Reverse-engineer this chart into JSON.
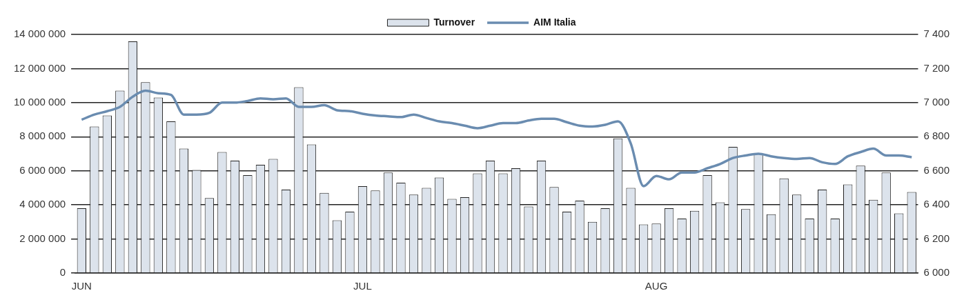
{
  "chart_data": {
    "type": "bar",
    "categories": [
      "JUN",
      null,
      null,
      null,
      null,
      null,
      null,
      null,
      null,
      null,
      null,
      null,
      null,
      null,
      null,
      null,
      null,
      null,
      null,
      null,
      null,
      null,
      "JUL",
      null,
      null,
      null,
      null,
      null,
      null,
      null,
      null,
      null,
      null,
      null,
      null,
      null,
      null,
      null,
      null,
      null,
      null,
      null,
      null,
      null,
      null,
      "AUG",
      null,
      null,
      null,
      null,
      null,
      null,
      null,
      null,
      null,
      null,
      null,
      null,
      null,
      null,
      null,
      null,
      null,
      null,
      null,
      null
    ],
    "series": [
      {
        "name": "Turnover",
        "color": "#dce3ec",
        "values": [
          3800000,
          8600000,
          9250000,
          10700000,
          13600000,
          11200000,
          10300000,
          8900000,
          7300000,
          6050000,
          4400000,
          7100000,
          6600000,
          5750000,
          6350000,
          6700000,
          4900000,
          10900000,
          7550000,
          4700000,
          3100000,
          3600000,
          5100000,
          4850000,
          5900000,
          5300000,
          4600000,
          5000000,
          5600000,
          4350000,
          4450000,
          5850000,
          6600000,
          5850000,
          6150000,
          3900000,
          6600000,
          5050000,
          3600000,
          4250000,
          3000000,
          3800000,
          7900000,
          5000000,
          2850000,
          2900000,
          3800000,
          3200000,
          3650000,
          5750000,
          4150000,
          7400000,
          3750000,
          7000000,
          3450000,
          5550000,
          4600000,
          3200000,
          4900000,
          3200000,
          5200000,
          6300000,
          4300000,
          5900000,
          3500000,
          4750000
        ]
      },
      {
        "name": "AIM Italia",
        "type": "line",
        "axis": "y2",
        "color": "#6a8cb0",
        "values": [
          6900,
          6930,
          6950,
          6975,
          7035,
          7070,
          7055,
          7045,
          6930,
          6930,
          6940,
          7000,
          7000,
          7010,
          7025,
          7020,
          7025,
          6975,
          6975,
          6985,
          6955,
          6950,
          6935,
          6925,
          6920,
          6915,
          6930,
          6910,
          6890,
          6880,
          6865,
          6850,
          6865,
          6880,
          6880,
          6895,
          6905,
          6905,
          6885,
          6865,
          6860,
          6870,
          6890,
          6760,
          6510,
          6570,
          6550,
          6590,
          6590,
          6615,
          6640,
          6675,
          6690,
          6700,
          6685,
          6675,
          6670,
          6675,
          6650,
          6640,
          6685,
          6710,
          6730,
          6690,
          6690,
          6680
        ]
      }
    ],
    "ylim": [
      0,
      14000000
    ],
    "yticks": [
      {
        "value": 0,
        "label": "0"
      },
      {
        "value": 2000000,
        "label": "2 000 000"
      },
      {
        "value": 4000000,
        "label": "4 000 000"
      },
      {
        "value": 6000000,
        "label": "6 000 000"
      },
      {
        "value": 8000000,
        "label": "8 000 000"
      },
      {
        "value": 10000000,
        "label": "10 000 000"
      },
      {
        "value": 12000000,
        "label": "12 000 000"
      },
      {
        "value": 14000000,
        "label": "14 000 000"
      }
    ],
    "y2lim": [
      6000,
      7400
    ],
    "y2ticks": [
      {
        "value": 6000,
        "label": "6 000"
      },
      {
        "value": 6200,
        "label": "6 200"
      },
      {
        "value": 6400,
        "label": "6 400"
      },
      {
        "value": 6600,
        "label": "6 600"
      },
      {
        "value": 6800,
        "label": "6 800"
      },
      {
        "value": 7000,
        "label": "7 000"
      },
      {
        "value": 7200,
        "label": "7 200"
      },
      {
        "value": 7400,
        "label": "7 400"
      }
    ],
    "grid": "y",
    "legend": "top",
    "marker": "none"
  }
}
